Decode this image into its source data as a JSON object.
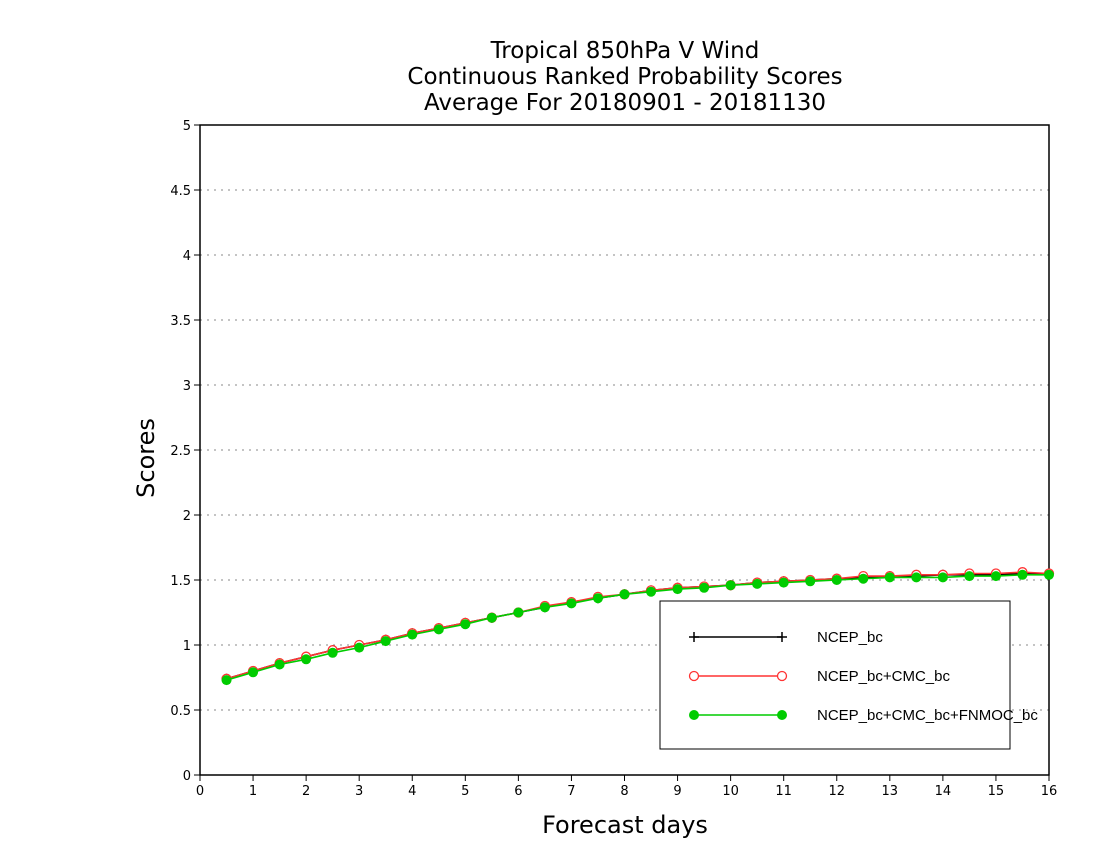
{
  "chart_data": {
    "type": "line",
    "title_lines": [
      "Tropical 850hPa V Wind",
      "Continuous Ranked Probability Scores",
      "Average For 20180901 - 20181130"
    ],
    "xlabel": "Forecast days",
    "ylabel": "Scores",
    "xlim": [
      0,
      16
    ],
    "ylim": [
      0,
      5
    ],
    "x_ticks": [
      0,
      1,
      2,
      3,
      4,
      5,
      6,
      7,
      8,
      9,
      10,
      11,
      12,
      13,
      14,
      15,
      16
    ],
    "y_ticks": [
      0,
      0.5,
      1,
      1.5,
      2,
      2.5,
      3,
      3.5,
      4,
      4.5,
      5
    ],
    "y_tick_labels": [
      "0",
      "0.5",
      "1",
      "1.5",
      "2",
      "2.5",
      "3",
      "3.5",
      "4",
      "4.5",
      "5"
    ],
    "grid": "horizontal dotted",
    "legend_position": "bottom-right",
    "x": [
      0.5,
      1,
      1.5,
      2,
      2.5,
      3,
      3.5,
      4,
      4.5,
      5,
      5.5,
      6,
      6.5,
      7,
      7.5,
      8,
      8.5,
      9,
      9.5,
      10,
      10.5,
      11,
      11.5,
      12,
      12.5,
      13,
      13.5,
      14,
      14.5,
      15,
      15.5,
      16
    ],
    "series": [
      {
        "name": "NCEP_bc",
        "color": "#000000",
        "marker": "plus",
        "values": [
          0.74,
          0.8,
          0.86,
          0.91,
          0.96,
          1.0,
          1.04,
          1.09,
          1.13,
          1.17,
          1.21,
          1.25,
          1.29,
          1.33,
          1.36,
          1.39,
          1.42,
          1.44,
          1.45,
          1.46,
          1.48,
          1.49,
          1.5,
          1.51,
          1.52,
          1.53,
          1.53,
          1.54,
          1.54,
          1.54,
          1.55,
          1.55
        ]
      },
      {
        "name": "NCEP_bc+CMC_bc",
        "color": "#ff3333",
        "marker": "open-circle",
        "values": [
          0.74,
          0.8,
          0.86,
          0.91,
          0.96,
          1.0,
          1.04,
          1.09,
          1.13,
          1.17,
          1.21,
          1.25,
          1.3,
          1.33,
          1.37,
          1.39,
          1.42,
          1.44,
          1.45,
          1.46,
          1.48,
          1.49,
          1.5,
          1.51,
          1.53,
          1.53,
          1.54,
          1.54,
          1.55,
          1.55,
          1.56,
          1.55
        ]
      },
      {
        "name": "NCEP_bc+CMC_bc+FNMOC_bc",
        "color": "#00cc00",
        "marker": "filled-circle",
        "values": [
          0.73,
          0.79,
          0.85,
          0.89,
          0.94,
          0.98,
          1.03,
          1.08,
          1.12,
          1.16,
          1.21,
          1.25,
          1.29,
          1.32,
          1.36,
          1.39,
          1.41,
          1.43,
          1.44,
          1.46,
          1.47,
          1.48,
          1.49,
          1.5,
          1.51,
          1.52,
          1.52,
          1.52,
          1.53,
          1.53,
          1.54,
          1.54
        ]
      }
    ]
  }
}
